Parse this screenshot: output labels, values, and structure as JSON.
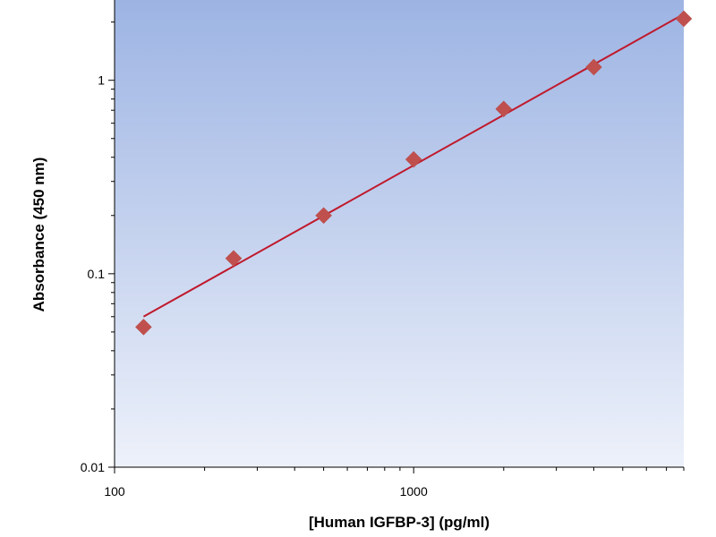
{
  "chart_data": {
    "type": "scatter",
    "title": "",
    "xlabel": "[Human IGFBP-3] (pg/ml)",
    "ylabel": "Absorbance (450 nm)",
    "x_scale": "log",
    "y_scale": "log",
    "xlim": [
      100,
      8000
    ],
    "ylim": [
      0.01,
      2.6
    ],
    "x_ticks": [
      {
        "value": 100,
        "label": "100"
      },
      {
        "value": 1000,
        "label": "1000"
      }
    ],
    "y_ticks": [
      {
        "value": 0.01,
        "label": "0.01"
      },
      {
        "value": 0.1,
        "label": "0.1"
      },
      {
        "value": 1,
        "label": "1"
      }
    ],
    "grid": false,
    "legend": "none",
    "series": [
      {
        "type": "scatter",
        "marker": "diamond",
        "color": "#c0504d",
        "x": [
          125,
          250,
          500,
          1000,
          2000,
          4000,
          8000
        ],
        "y": [
          0.053,
          0.12,
          0.2,
          0.39,
          0.71,
          1.17,
          2.08
        ]
      },
      {
        "type": "line",
        "color": "#c0192c",
        "x": [
          125,
          8000
        ],
        "y": [
          0.06,
          2.2
        ]
      }
    ],
    "colors": {
      "background_top": "#9db4e3",
      "background_bottom": "#edf1fa"
    }
  }
}
